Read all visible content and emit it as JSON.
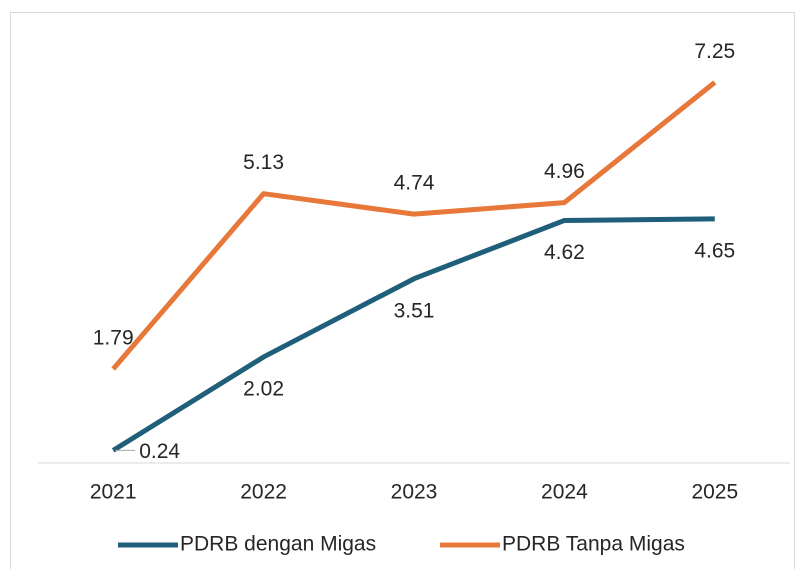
{
  "chart_data": {
    "type": "line",
    "categories": [
      "2021",
      "2022",
      "2023",
      "2024",
      "2025"
    ],
    "series": [
      {
        "name": "PDRB dengan Migas",
        "color": "#1f5f7a",
        "values": [
          0.24,
          2.02,
          3.51,
          4.62,
          4.65
        ]
      },
      {
        "name": "PDRB Tanpa Migas",
        "color": "#e8773a",
        "values": [
          1.79,
          5.13,
          4.74,
          4.96,
          7.25
        ]
      }
    ],
    "ylim": [
      0,
      8
    ],
    "legend": "bottom"
  }
}
